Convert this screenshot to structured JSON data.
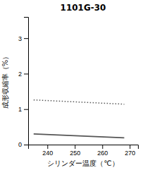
{
  "chart_data": {
    "type": "line",
    "title": "1101G-30",
    "xlabel": "シリンダー温度（℃）",
    "ylabel": "成形収縮率（%）",
    "x": [
      235,
      268
    ],
    "series": [
      {
        "color": "#555555",
        "line_style": "solid",
        "values": [
          0.3,
          0.19
        ]
      },
      {
        "color": "#555555",
        "line_style": "dotted",
        "values": [
          1.26,
          1.14
        ]
      }
    ],
    "xlim": [
      233,
      273
    ],
    "ylim": [
      0,
      3.6
    ],
    "xticks": [
      240,
      250,
      260,
      270
    ],
    "yticks": [
      0,
      1,
      2,
      3
    ],
    "grid": false
  }
}
